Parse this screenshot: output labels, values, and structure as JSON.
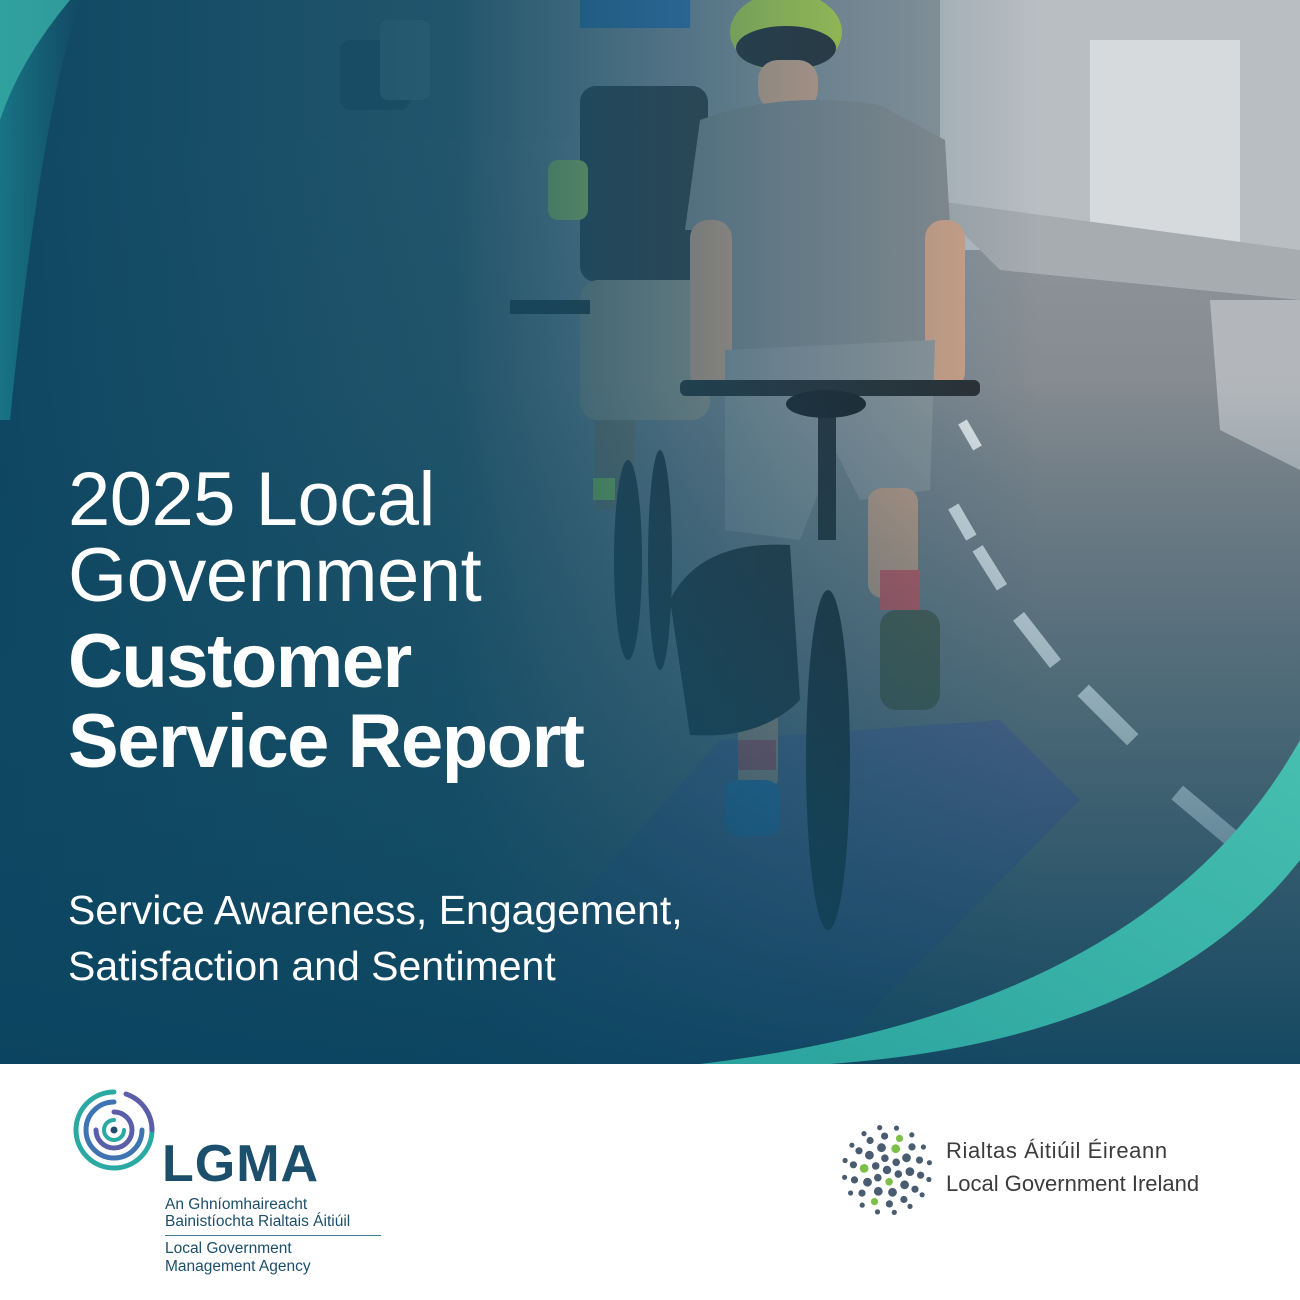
{
  "cover": {
    "title_line1": "2025 Local",
    "title_line2": "Government",
    "title_line3": "Customer",
    "title_line4": "Service Report",
    "subtitle_line1": "Service Awareness, Engagement,",
    "subtitle_line2": "Satisfaction and Sentiment"
  },
  "lgma": {
    "acronym": "LGMA",
    "irish_line1": "An Ghníomhaireacht",
    "irish_line2": "Bainistíochta Rialtais Áitiúil",
    "english_line1": "Local Government",
    "english_line2": "Management Agency"
  },
  "lgi": {
    "name_irish": "Rialtas Áitiúil Éireann",
    "name_english": "Local Government Ireland"
  },
  "colors": {
    "navy_overlay": "#0e4a64",
    "teal_swoosh": "#3fb3a8",
    "purple_band": "#5b5fa8",
    "lgma_text": "#1c4f6b",
    "lgi_text": "#3c3c3c",
    "lgi_green_dot": "#7cc04a"
  }
}
